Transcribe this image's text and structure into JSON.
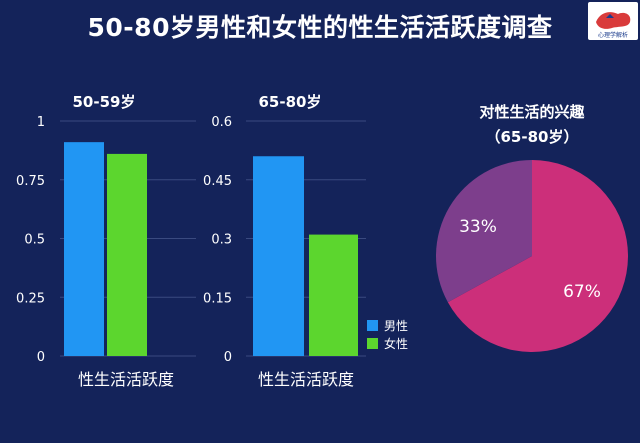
{
  "title": "50-80岁男性和女性的性生活活跃度调查",
  "logo": {
    "text": "心理学解析",
    "icon": "map-logo-icon",
    "color": "#d93b3b"
  },
  "colors": {
    "male": "#2196f3",
    "female": "#5cd62e",
    "pie_major": "#cc2f7a",
    "pie_minor": "#7d3e8c"
  },
  "legend": {
    "male": "男性",
    "female": "女性"
  },
  "chart_data": [
    {
      "type": "bar",
      "title": "50-59岁",
      "categories": [
        "性生活活跃度"
      ],
      "series": [
        {
          "name": "男性",
          "values": [
            0.91
          ]
        },
        {
          "name": "女性",
          "values": [
            0.86
          ]
        }
      ],
      "xlabel": "性生活活跃度",
      "ylabel": "",
      "ylim": [
        0,
        1
      ],
      "yticks": [
        "0",
        "0.25",
        "0.5",
        "0.75",
        "1"
      ],
      "ytick_values": [
        0,
        0.25,
        0.5,
        0.75,
        1
      ]
    },
    {
      "type": "bar",
      "title": "65-80岁",
      "categories": [
        "性生活活跃度"
      ],
      "series": [
        {
          "name": "男性",
          "values": [
            0.51
          ]
        },
        {
          "name": "女性",
          "values": [
            0.31
          ]
        }
      ],
      "xlabel": "性生活活跃度",
      "ylabel": "",
      "ylim": [
        0,
        0.6
      ],
      "yticks": [
        "0",
        "0.15",
        "0.3",
        "0.45",
        "0.6"
      ],
      "ytick_values": [
        0,
        0.15,
        0.3,
        0.45,
        0.6
      ]
    },
    {
      "type": "pie",
      "title_line1": "对性生活的兴趣",
      "title_line2": "（65-80岁）",
      "slices": [
        {
          "label": "67%",
          "value": 67
        },
        {
          "label": "33%",
          "value": 33
        }
      ]
    }
  ]
}
